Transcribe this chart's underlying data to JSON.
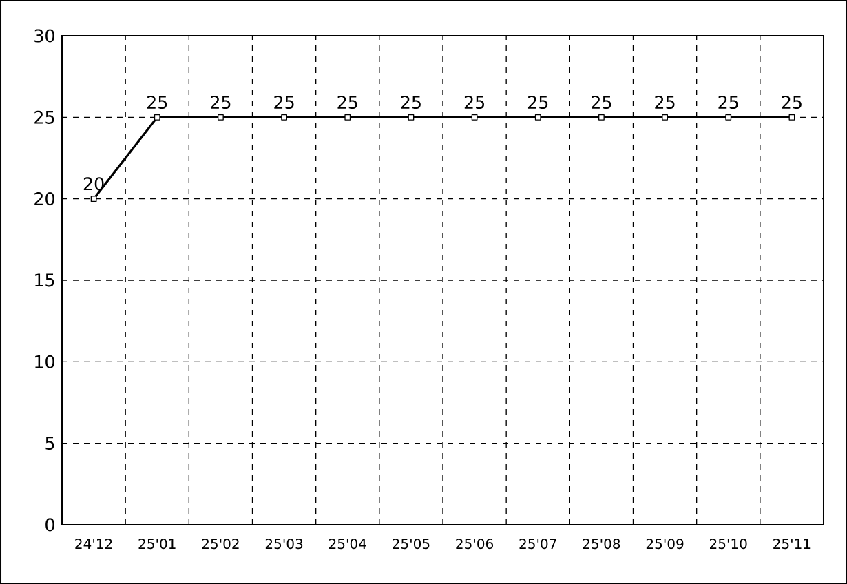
{
  "chart_data": {
    "type": "line",
    "categories": [
      "24'12",
      "25'01",
      "25'02",
      "25'03",
      "25'04",
      "25'05",
      "25'06",
      "25'07",
      "25'08",
      "25'09",
      "25'10",
      "25'11"
    ],
    "values": [
      20,
      25,
      25,
      25,
      25,
      25,
      25,
      25,
      25,
      25,
      25,
      25
    ],
    "color": "#000000",
    "ylim": [
      0,
      30
    ],
    "yticks": [
      0,
      5,
      10,
      15,
      20,
      25,
      30
    ],
    "grid": true,
    "marker": "square",
    "line_style": "solid",
    "data_labels": true
  }
}
